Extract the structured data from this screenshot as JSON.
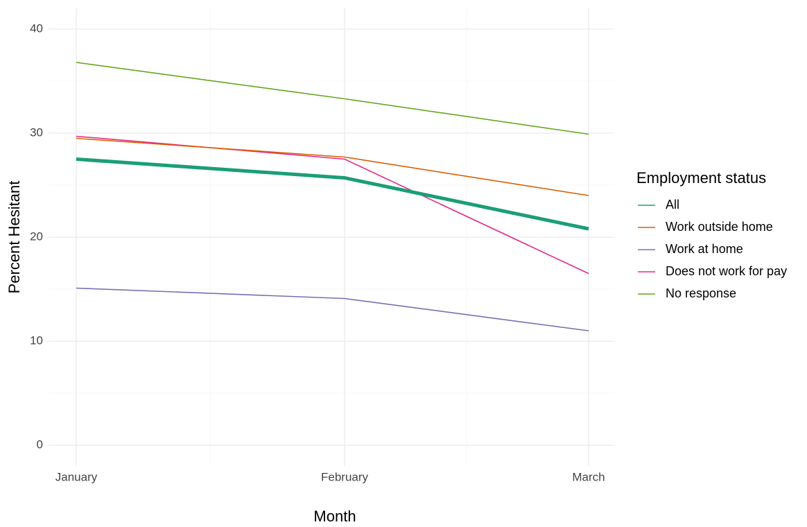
{
  "chart_data": {
    "type": "line",
    "x_label": "Month",
    "y_label": "Percent Hesitant",
    "legend_title": "Employment status",
    "legend_position": "right",
    "grid": true,
    "categories": [
      "January",
      "February",
      "March"
    ],
    "ylim": [
      -2,
      42
    ],
    "yticks": [
      0,
      10,
      20,
      30,
      40
    ],
    "series": [
      {
        "name": "All",
        "color": "#1b9e77",
        "values": [
          27.5,
          25.7,
          20.8
        ]
      },
      {
        "name": "Work outside home",
        "color": "#d95f02",
        "values": [
          29.5,
          27.7,
          24.0
        ]
      },
      {
        "name": "Work at home",
        "color": "#7570b3",
        "values": [
          15.1,
          14.1,
          11.0
        ]
      },
      {
        "name": "Does not work for pay",
        "color": "#e7298a",
        "values": [
          29.7,
          27.5,
          16.5
        ]
      },
      {
        "name": "No response",
        "color": "#66a61e",
        "values": [
          36.8,
          33.3,
          29.9
        ]
      }
    ]
  }
}
